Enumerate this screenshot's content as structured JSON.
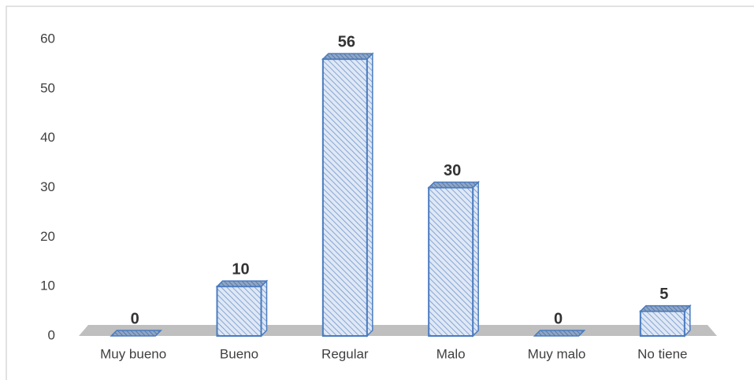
{
  "chart_data": {
    "type": "bar",
    "categories": [
      "Muy bueno",
      "Bueno",
      "Regular",
      "Malo",
      "Muy malo",
      "No tiene"
    ],
    "values": [
      0,
      10,
      56,
      30,
      0,
      5
    ],
    "color": "#4a7bbf",
    "ylim": [
      0,
      60
    ],
    "yticks": [
      0,
      10,
      20,
      30,
      40,
      50,
      60
    ]
  }
}
